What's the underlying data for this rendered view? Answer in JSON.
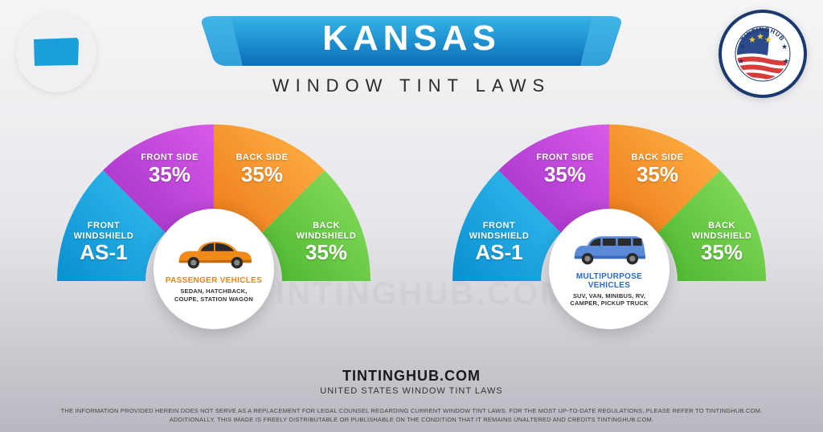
{
  "header": {
    "title": "KANSAS",
    "subtitle": "WINDOW TINT LAWS",
    "banner_gradient": [
      "#1a8fd8",
      "#0a6db8"
    ],
    "banner_edge_color": "#45b5e8",
    "state_color": "#1a9fd9",
    "logo_text_top": "TINTINGHUB",
    "logo_text_bottom": ".COM",
    "logo_border": "#1a3a6e",
    "logo_star_color": "#f5c93d",
    "logo_stripe_red": "#d93a3a",
    "logo_stripe_white": "#ffffff",
    "logo_blue": "#2a4a8a"
  },
  "segments": {
    "colors": [
      "#1a9fd9",
      "#b23fd4",
      "#f59a2e",
      "#6bc946"
    ],
    "gradients": [
      [
        "#0a8fd0",
        "#35bef0"
      ],
      [
        "#a02fc8",
        "#d85ae8"
      ],
      [
        "#ed7a1a",
        "#ffb545"
      ],
      [
        "#4ab52e",
        "#8ce060"
      ]
    ],
    "labels": [
      {
        "title": "FRONT\nWINDSHIELD",
        "value": "AS-1"
      },
      {
        "title": "FRONT SIDE",
        "value": "35%"
      },
      {
        "title": "BACK SIDE",
        "value": "35%"
      },
      {
        "title": "BACK\nWINDSHIELD",
        "value": "35%"
      }
    ]
  },
  "vehicles": [
    {
      "type": "PASSENGER VEHICLES",
      "type_color": "#e8851a",
      "desc": "SEDAN, HATCHBACK,\nCOUPE, STATION WAGON",
      "car_body": "#f08a1a",
      "car_shade": "#c56a0a",
      "car_window": "#2a2a2a"
    },
    {
      "type": "MULTIPURPOSE VEHICLES",
      "type_color": "#2a6ac8",
      "desc": "SUV, VAN, MINIBUS, RV,\nCAMPER, PICKUP TRUCK",
      "car_body": "#5a8ad8",
      "car_shade": "#3a6ab8",
      "car_window": "#2a2a2a"
    }
  ],
  "footer": {
    "site": "TINTINGHUB.COM",
    "tagline": "UNITED STATES WINDOW TINT LAWS",
    "disclaimer": "THE INFORMATION PROVIDED HEREIN DOES NOT SERVE AS A REPLACEMENT FOR LEGAL COUNSEL REGARDING CURRENT WINDOW TINT LAWS. FOR THE MOST UP-TO-DATE REGULATIONS, PLEASE REFER TO TINTINGHUB.COM.\nADDITIONALLY, THIS IMAGE IS FREELY DISTRIBUTABLE OR PUBLISHABLE ON THE CONDITION THAT IT REMAINS UNALTERED AND CREDITS TINTINGHUB.COM."
  },
  "watermark": "TINTINGHUB.COM",
  "background_gradient": [
    "#f5f5f7",
    "#e8e8ec",
    "#b8b8c0"
  ]
}
